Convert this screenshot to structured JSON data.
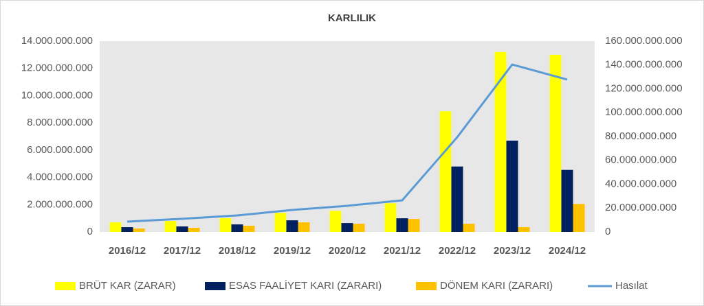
{
  "chart_data": {
    "type": "bar-line",
    "title": "KARLILIK",
    "categories": [
      "2016/12",
      "2017/12",
      "2018/12",
      "2019/12",
      "2020/12",
      "2021/12",
      "2022/12",
      "2023/12",
      "2024/12"
    ],
    "series": [
      {
        "name": "BRÜT KAR (ZARAR)",
        "type": "bar",
        "color": "#ffff00",
        "values": [
          700000000,
          800000000,
          1000000000,
          1400000000,
          1550000000,
          2100000000,
          8850000000,
          13200000000,
          13000000000
        ]
      },
      {
        "name": "ESAS FAALİYET KARI (ZARARI)",
        "type": "bar",
        "color": "#002060",
        "values": [
          350000000,
          400000000,
          550000000,
          850000000,
          650000000,
          1000000000,
          4800000000,
          6700000000,
          4550000000
        ]
      },
      {
        "name": "DÖNEM KARI (ZARARI)",
        "type": "bar",
        "color": "#ffc000",
        "values": [
          250000000,
          300000000,
          450000000,
          700000000,
          600000000,
          950000000,
          600000000,
          350000000,
          2050000000
        ]
      },
      {
        "name": "Hasılat",
        "type": "line",
        "axis": "y2",
        "color": "#5b9bd5",
        "values": [
          8600000000,
          11000000000,
          13800000000,
          18400000000,
          21900000000,
          26500000000,
          79400000000,
          140400000000,
          127800000000
        ]
      }
    ],
    "ylim": [
      0,
      14000000000
    ],
    "yticks": [
      0,
      {
        "value": 2000000000,
        "label": "2.000.000.000"
      },
      {
        "value": 4000000000,
        "label": "4.000.000.000"
      },
      {
        "value": 6000000000,
        "label": "6.000.000.000"
      },
      {
        "value": 8000000000,
        "label": "8.000.000.000"
      },
      {
        "value": 10000000000,
        "label": "10.000.000.000"
      },
      {
        "value": 12000000000,
        "label": "12.000.000.000"
      },
      {
        "value": 14000000000,
        "label": "14.000.000.000"
      }
    ],
    "y2lim": [
      0,
      160000000000
    ],
    "y2ticks": [
      0,
      {
        "value": 20000000000,
        "label": "20.000.000.000"
      },
      {
        "value": 40000000000,
        "label": "40.000.000.000"
      },
      {
        "value": 60000000000,
        "label": "60.000.000.000"
      },
      {
        "value": 80000000000,
        "label": "80.000.000.000"
      },
      {
        "value": 100000000000,
        "label": "100.000.000.000"
      },
      {
        "value": 120000000000,
        "label": "120.000.000.000"
      },
      {
        "value": 140000000000,
        "label": "140.000.000.000"
      },
      {
        "value": 160000000000,
        "label": "160.000.000.000"
      }
    ],
    "legend": "bottom"
  }
}
